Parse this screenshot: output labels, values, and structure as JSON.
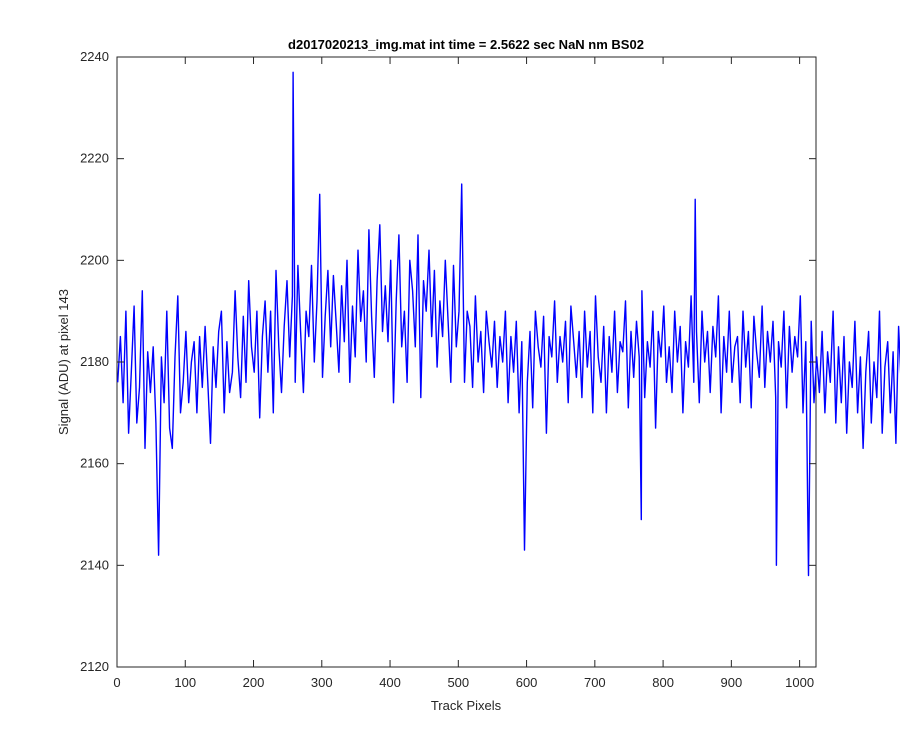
{
  "chart_data": {
    "type": "line",
    "title": "d2017020213_img.mat int time = 2.5622 sec  NaN nm BS02",
    "xlabel": "Track Pixels",
    "ylabel": "Signal (ADU) at pixel 143",
    "xlim": [
      0,
      1024
    ],
    "ylim": [
      2120,
      2240
    ],
    "xticks": [
      0,
      100,
      200,
      300,
      400,
      500,
      600,
      700,
      800,
      900,
      1000
    ],
    "yticks": [
      2120,
      2140,
      2160,
      2180,
      2200,
      2220,
      2240
    ],
    "grid": false,
    "legend": "none",
    "line_color": "#0000ff",
    "series": [
      {
        "x_start": 1,
        "x_step": 4,
        "values": [
          2176,
          2185,
          2172,
          2190,
          2166,
          2178,
          2191,
          2168,
          2175,
          2194,
          2163,
          2182,
          2174,
          2183,
          2168,
          2196,
          2181,
          2172,
          2190,
          2167,
          2163,
          2181,
          2193,
          2170,
          2176,
          2186,
          2172,
          2180,
          2184,
          2170,
          2185,
          2175,
          2187,
          2176,
          2164,
          2183,
          2175,
          2186,
          2190,
          2170,
          2184,
          2174,
          2178,
          2194,
          2181,
          2173,
          2189,
          2176,
          2196,
          2183,
          2178,
          2190,
          2169,
          2185,
          2192,
          2178,
          2190,
          2170,
          2198,
          2183,
          2174,
          2187,
          2196,
          2181,
          2193,
          2176,
          2199,
          2186,
          2174,
          2190,
          2185,
          2199,
          2180,
          2192,
          2213,
          2177,
          2189,
          2198,
          2183,
          2197,
          2188,
          2178,
          2195,
          2184,
          2200,
          2176,
          2191,
          2181,
          2202,
          2188,
          2194,
          2180,
          2206,
          2189,
          2177,
          2196,
          2207,
          2186,
          2195,
          2184,
          2200,
          2172,
          2192,
          2205,
          2183,
          2190,
          2176,
          2200,
          2194,
          2183,
          2205,
          2173,
          2196,
          2190,
          2202,
          2185,
          2198,
          2179,
          2192,
          2185,
          2200,
          2188,
          2176,
          2199,
          2183,
          2190,
          2194,
          2176,
          2190,
          2187,
          2175,
          2193,
          2180,
          2186,
          2174,
          2190,
          2184,
          2179,
          2188,
          2175,
          2185,
          2180,
          2190,
          2172,
          2185,
          2178,
          2188,
          2170,
          2184,
          2192,
          2176,
          2186,
          2171,
          2190,
          2183,
          2179,
          2189,
          2166,
          2185,
          2181,
          2192,
          2176,
          2185,
          2180,
          2188,
          2172,
          2191,
          2184,
          2177,
          2186,
          2173,
          2190,
          2179,
          2186,
          2170,
          2193,
          2181,
          2176,
          2187,
          2170,
          2185,
          2178,
          2190,
          2174,
          2184,
          2182,
          2192,
          2171,
          2186,
          2177,
          2188,
          2181,
          2194,
          2173,
          2184,
          2179,
          2190,
          2167,
          2186,
          2181,
          2191,
          2176,
          2183,
          2174,
          2190,
          2180,
          2187,
          2170,
          2184,
          2179,
          2193,
          2176,
          2186,
          2172,
          2190,
          2180,
          2186,
          2174,
          2187,
          2181,
          2193,
          2170,
          2185,
          2178,
          2190,
          2176,
          2183,
          2185,
          2172,
          2190,
          2179,
          2186,
          2171,
          2189,
          2182,
          2177,
          2191,
          2175,
          2186,
          2180,
          2188,
          2173,
          2184,
          2179,
          2190,
          2171,
          2187,
          2178,
          2185,
          2181,
          2193,
          2170,
          2184,
          2176,
          2188,
          2172,
          2181,
          2174,
          2186,
          2170,
          2182,
          2176,
          2190,
          2168,
          2183,
          2172,
          2185,
          2166,
          2180,
          2175,
          2188,
          2170,
          2181,
          2163,
          2178,
          2186,
          2168,
          2180,
          2173,
          2190,
          2166,
          2179,
          2184,
          2170,
          2182,
          2164,
          2187,
          2175
        ],
        "events": [
          {
            "x": 61,
            "value": 2142
          },
          {
            "x": 258,
            "value": 2237
          },
          {
            "x": 505,
            "value": 2215
          },
          {
            "x": 597,
            "value": 2143
          },
          {
            "x": 768,
            "value": 2149
          },
          {
            "x": 847,
            "value": 2212
          },
          {
            "x": 966,
            "value": 2140
          },
          {
            "x": 1013,
            "value": 2138
          }
        ]
      }
    ]
  }
}
